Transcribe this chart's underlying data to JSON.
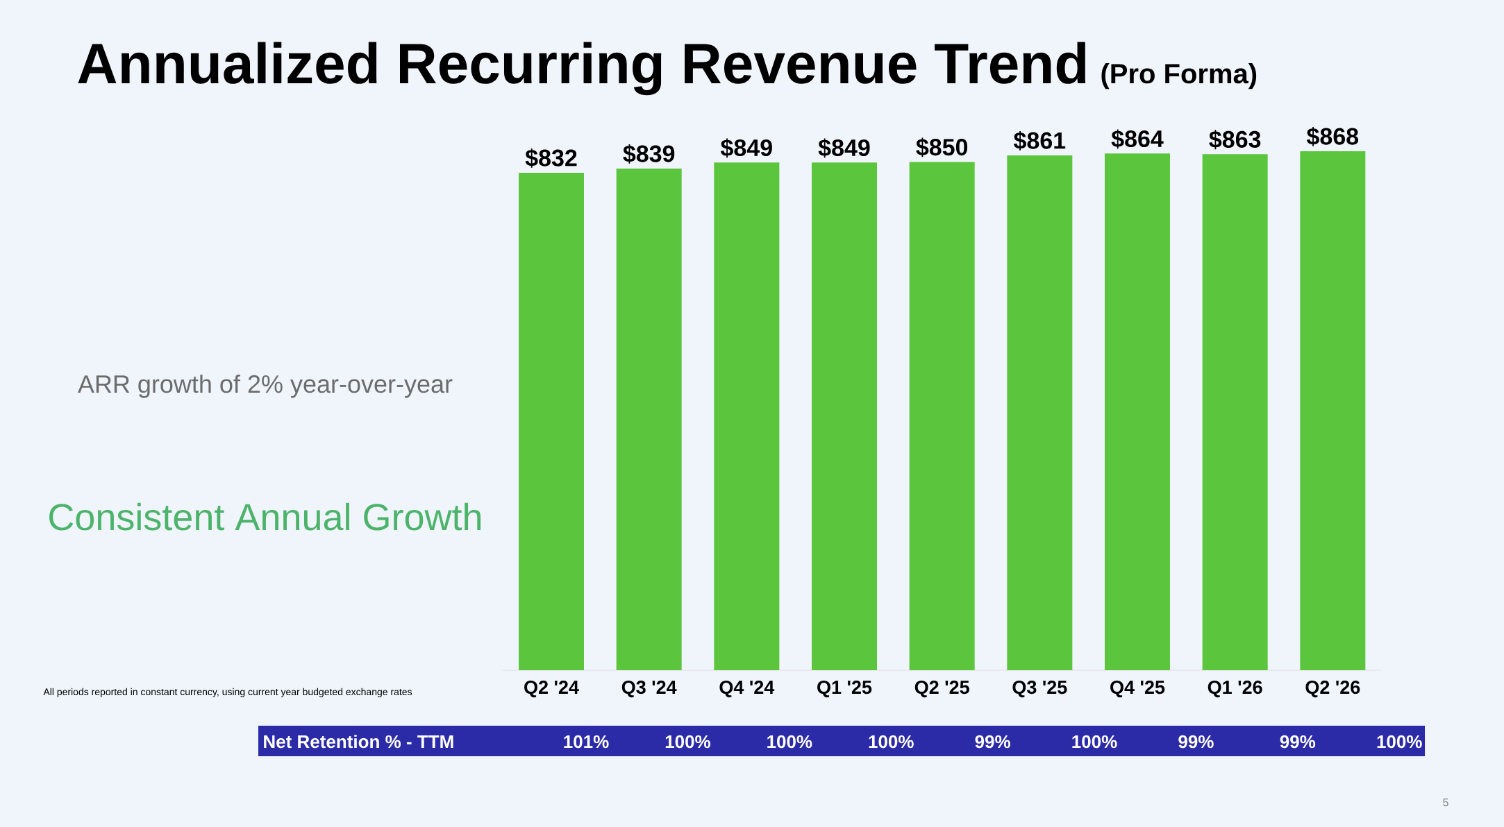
{
  "chart_data": {
    "type": "bar",
    "title": "Annualized Recurring Revenue Trend",
    "subtitle": "(Pro Forma)",
    "categories": [
      "Q2 '24",
      "Q3 '24",
      "Q4 '24",
      "Q1 '25",
      "Q2 '25",
      "Q3 '25",
      "Q4 '25",
      "Q1 '26",
      "Q2 '26"
    ],
    "values": [
      832,
      839,
      849,
      849,
      850,
      861,
      864,
      863,
      868
    ],
    "value_labels": [
      "$832",
      "$839",
      "$849",
      "$849",
      "$850",
      "$861",
      "$864",
      "$863",
      "$868"
    ],
    "color": "#5bc63d",
    "annotations": [
      "ARR growth of 2% year-over-year",
      "Consistent Annual Growth",
      "All periods reported in constant currency, using current year budgeted exchange rates",
      "Net Retention % - TTM",
      "101%",
      "100%",
      "100%",
      "100%",
      "99%",
      "100%",
      "99%",
      "99%",
      "100%",
      "5"
    ]
  }
}
